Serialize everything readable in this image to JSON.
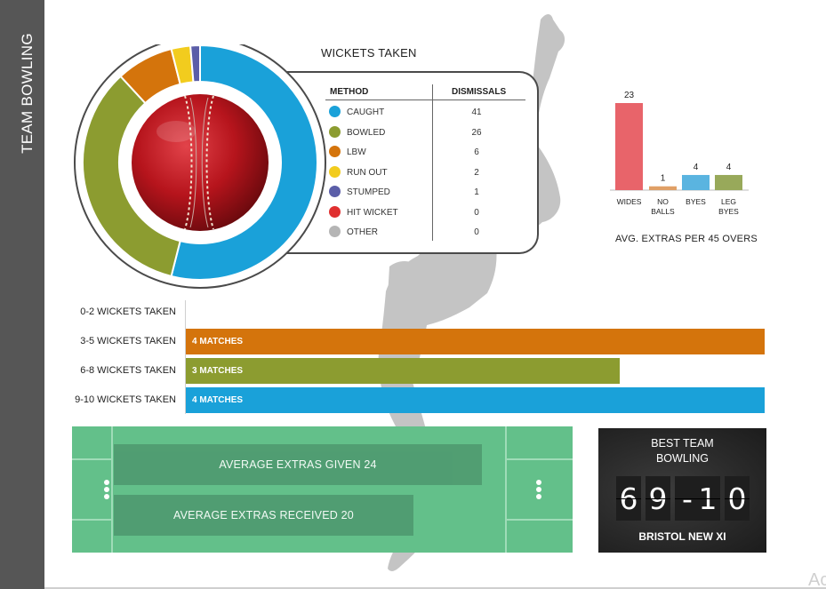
{
  "sidebar": {
    "title": "TEAM BOWLING"
  },
  "wickets": {
    "title": "WICKETS TAKEN",
    "col_method": "METHOD",
    "col_dismissals": "DISMISSALS"
  },
  "chart_data": [
    {
      "type": "pie",
      "title": "WICKETS TAKEN",
      "categories": [
        "CAUGHT",
        "BOWLED",
        "LBW",
        "RUN OUT",
        "STUMPED",
        "HIT WICKET",
        "OTHER"
      ],
      "values": [
        41,
        26,
        6,
        2,
        1,
        0,
        0
      ],
      "colors": [
        "#1aa1d9",
        "#8c9c30",
        "#d4740c",
        "#f2cc1e",
        "#5b5ea8",
        "#e03030",
        "#b5b5b5"
      ],
      "center_icon": "cricket-ball-icon"
    },
    {
      "type": "bar",
      "title": "AVG. EXTRAS PER 45 OVERS",
      "categories": [
        "WIDES",
        "NO BALLS",
        "BYES",
        "LEG BYES"
      ],
      "values": [
        23,
        1,
        4,
        4
      ],
      "colors": [
        "#e8646a",
        "#e0a066",
        "#5ab4e0",
        "#98a95a"
      ]
    },
    {
      "type": "bar",
      "orientation": "horizontal",
      "categories": [
        "0-2 WICKETS TAKEN",
        "3-5 WICKETS TAKEN",
        "6-8 WICKETS TAKEN",
        "9-10 WICKETS TAKEN"
      ],
      "values": [
        0,
        4,
        3,
        4
      ],
      "bar_labels": [
        "",
        "4 MATCHES",
        "3 MATCHES",
        "4 MATCHES"
      ],
      "colors": [
        "#cccccc",
        "#d4740c",
        "#8c9c30",
        "#1aa1d9"
      ]
    }
  ],
  "extras": {
    "given": "AVERAGE EXTRAS GIVEN 24",
    "received": "AVERAGE EXTRAS RECEIVED 20"
  },
  "best": {
    "title_line1": "BEST TEAM",
    "title_line2": "BOWLING",
    "digits": [
      "6",
      "9",
      "-",
      "1",
      "0"
    ],
    "team": "BRISTOL NEW XI"
  },
  "corner_mark": "Ac"
}
